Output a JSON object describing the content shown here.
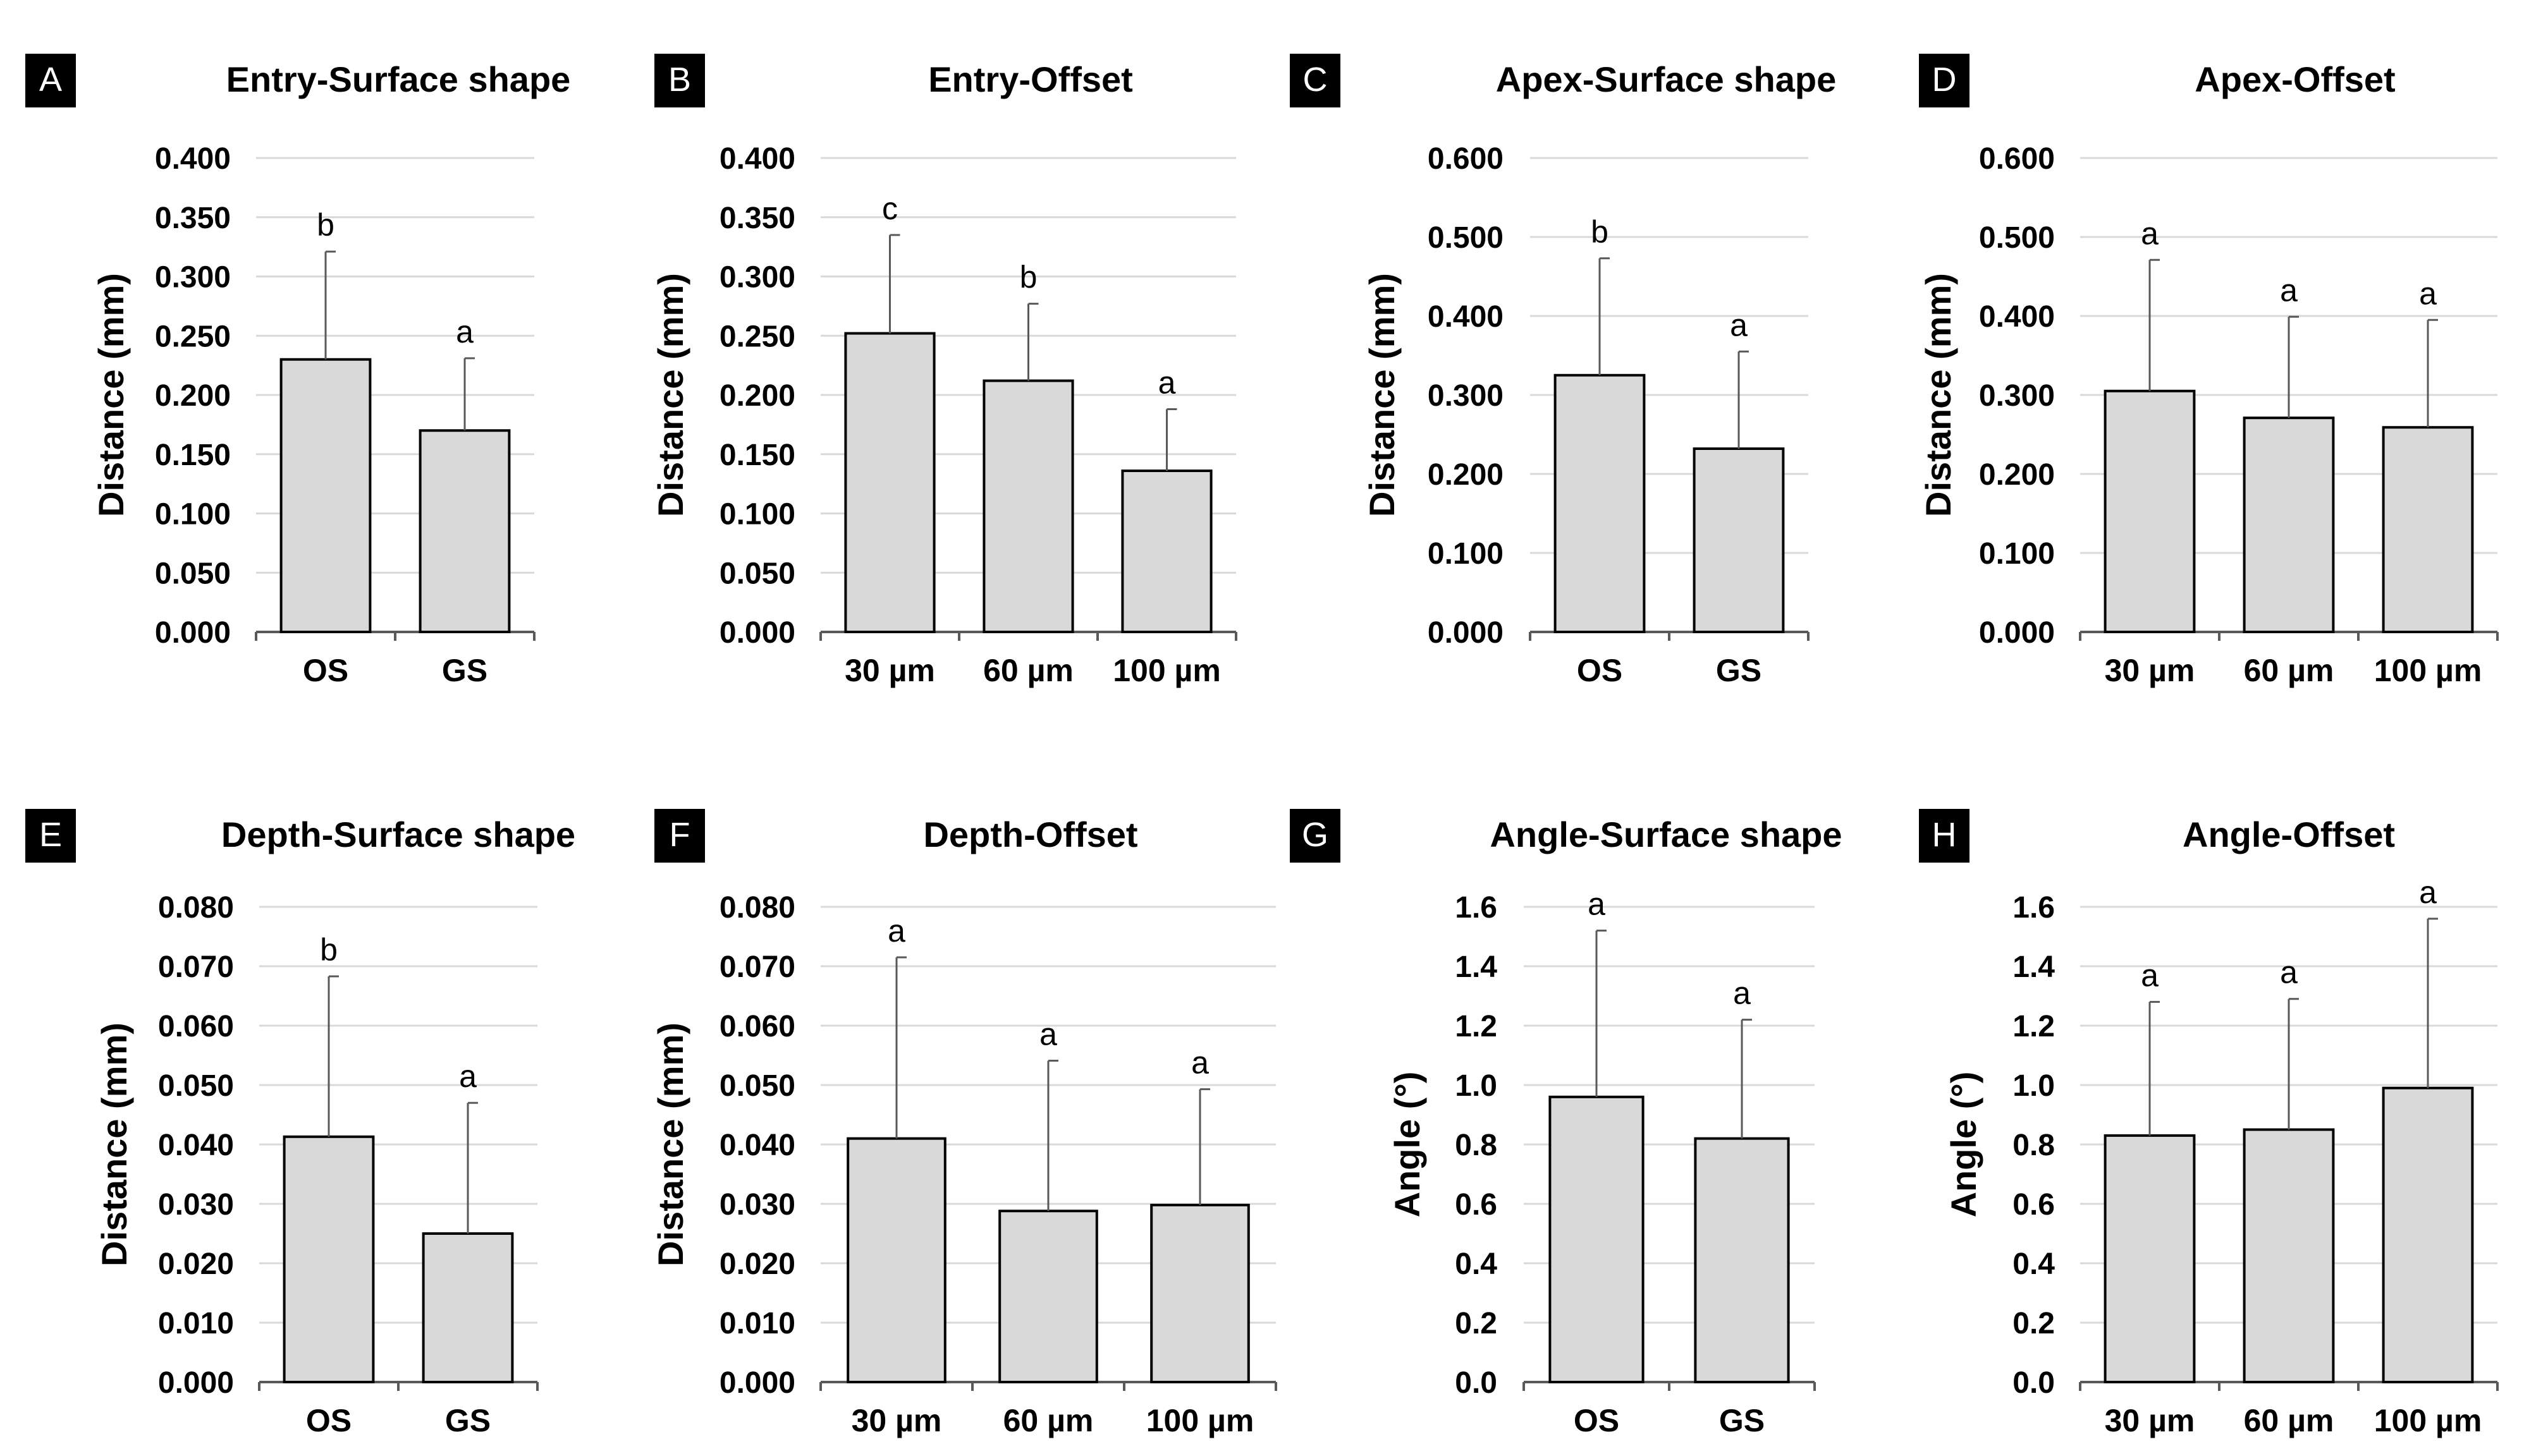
{
  "colors": {
    "bar_fill": "#d9d9d9",
    "bar_stroke": "#000000",
    "grid": "#d9d9d9",
    "axis": "#595959",
    "label_box": "#000000"
  },
  "chart_data": [
    {
      "panel": "A",
      "type": "bar",
      "title": "Entry-Surface shape",
      "ylabel": "Distance (mm)",
      "xlabel": "",
      "categories": [
        "OS",
        "GS"
      ],
      "values": [
        0.23,
        0.17
      ],
      "error": [
        0.091,
        0.061
      ],
      "letters": [
        "b",
        "a"
      ],
      "ylim": [
        0,
        0.4
      ],
      "yticks": [
        0,
        0.05,
        0.1,
        0.15,
        0.2,
        0.25,
        0.3,
        0.35,
        0.4
      ],
      "ytick_labels": [
        "0.000",
        "0.050",
        "0.100",
        "0.150",
        "0.200",
        "0.250",
        "0.300",
        "0.350",
        "0.400"
      ]
    },
    {
      "panel": "B",
      "type": "bar",
      "title": "Entry-Offset",
      "ylabel": "Distance (mm)",
      "xlabel": "",
      "categories": [
        "30 µm",
        "60 µm",
        "100 µm"
      ],
      "values": [
        0.252,
        0.212,
        0.136
      ],
      "error": [
        0.083,
        0.065,
        0.052
      ],
      "letters": [
        "c",
        "b",
        "a"
      ],
      "ylim": [
        0,
        0.4
      ],
      "yticks": [
        0,
        0.05,
        0.1,
        0.15,
        0.2,
        0.25,
        0.3,
        0.35,
        0.4
      ],
      "ytick_labels": [
        "0.000",
        "0.050",
        "0.100",
        "0.150",
        "0.200",
        "0.250",
        "0.300",
        "0.350",
        "0.400"
      ]
    },
    {
      "panel": "C",
      "type": "bar",
      "title": "Apex-Surface shape",
      "ylabel": "Distance (mm)",
      "xlabel": "",
      "categories": [
        "OS",
        "GS"
      ],
      "values": [
        0.325,
        0.232
      ],
      "error": [
        0.148,
        0.123
      ],
      "letters": [
        "b",
        "a"
      ],
      "ylim": [
        0,
        0.6
      ],
      "yticks": [
        0,
        0.1,
        0.2,
        0.3,
        0.4,
        0.5,
        0.6
      ],
      "ytick_labels": [
        "0.000",
        "0.100",
        "0.200",
        "0.300",
        "0.400",
        "0.500",
        "0.600"
      ]
    },
    {
      "panel": "D",
      "type": "bar",
      "title": "Apex-Offset",
      "ylabel": "Distance (mm)",
      "xlabel": "",
      "categories": [
        "30 µm",
        "60 µm",
        "100 µm"
      ],
      "values": [
        0.305,
        0.271,
        0.259
      ],
      "error": [
        0.166,
        0.128,
        0.136
      ],
      "letters": [
        "a",
        "a",
        "a"
      ],
      "ylim": [
        0,
        0.6
      ],
      "yticks": [
        0,
        0.1,
        0.2,
        0.3,
        0.4,
        0.5,
        0.6
      ],
      "ytick_labels": [
        "0.000",
        "0.100",
        "0.200",
        "0.300",
        "0.400",
        "0.500",
        "0.600"
      ]
    },
    {
      "panel": "E",
      "type": "bar",
      "title": "Depth-Surface shape",
      "ylabel": "Distance (mm)",
      "xlabel": "",
      "categories": [
        "OS",
        "GS"
      ],
      "values": [
        0.0413,
        0.025
      ],
      "error": [
        0.027,
        0.022
      ],
      "letters": [
        "b",
        "a"
      ],
      "ylim": [
        0,
        0.08
      ],
      "yticks": [
        0,
        0.01,
        0.02,
        0.03,
        0.04,
        0.05,
        0.06,
        0.07,
        0.08
      ],
      "ytick_labels": [
        "0.000",
        "0.010",
        "0.020",
        "0.030",
        "0.040",
        "0.050",
        "0.060",
        "0.070",
        "0.080"
      ]
    },
    {
      "panel": "F",
      "type": "bar",
      "title": "Depth-Offset",
      "ylabel": "Distance (mm)",
      "xlabel": "",
      "categories": [
        "30 µm",
        "60 µm",
        "100 µm"
      ],
      "values": [
        0.041,
        0.0288,
        0.0298
      ],
      "error": [
        0.0305,
        0.0253,
        0.0195
      ],
      "letters": [
        "a",
        "a",
        "a"
      ],
      "ylim": [
        0,
        0.08
      ],
      "yticks": [
        0,
        0.01,
        0.02,
        0.03,
        0.04,
        0.05,
        0.06,
        0.07,
        0.08
      ],
      "ytick_labels": [
        "0.000",
        "0.010",
        "0.020",
        "0.030",
        "0.040",
        "0.050",
        "0.060",
        "0.070",
        "0.080"
      ]
    },
    {
      "panel": "G",
      "type": "bar",
      "title": "Angle-Surface shape",
      "ylabel": "Angle (°)",
      "xlabel": "",
      "categories": [
        "OS",
        "GS"
      ],
      "values": [
        0.96,
        0.82
      ],
      "error": [
        0.56,
        0.4
      ],
      "letters": [
        "a",
        "a"
      ],
      "ylim": [
        0,
        1.6
      ],
      "yticks": [
        0,
        0.2,
        0.4,
        0.6,
        0.8,
        1.0,
        1.2,
        1.4,
        1.6
      ],
      "ytick_labels": [
        "0.0",
        "0.2",
        "0.4",
        "0.6",
        "0.8",
        "1.0",
        "1.2",
        "1.4",
        "1.6"
      ]
    },
    {
      "panel": "H",
      "type": "bar",
      "title": "Angle-Offset",
      "ylabel": "Angle (°)",
      "xlabel": "",
      "categories": [
        "30 µm",
        "60 µm",
        "100 µm"
      ],
      "values": [
        0.83,
        0.85,
        0.99
      ],
      "error": [
        0.45,
        0.44,
        0.57
      ],
      "letters": [
        "a",
        "a",
        "a"
      ],
      "ylim": [
        0,
        1.6
      ],
      "yticks": [
        0,
        0.2,
        0.4,
        0.6,
        0.8,
        1.0,
        1.2,
        1.4,
        1.6
      ],
      "ytick_labels": [
        "0.0",
        "0.2",
        "0.4",
        "0.6",
        "0.8",
        "1.0",
        "1.2",
        "1.4",
        "1.6"
      ]
    }
  ]
}
